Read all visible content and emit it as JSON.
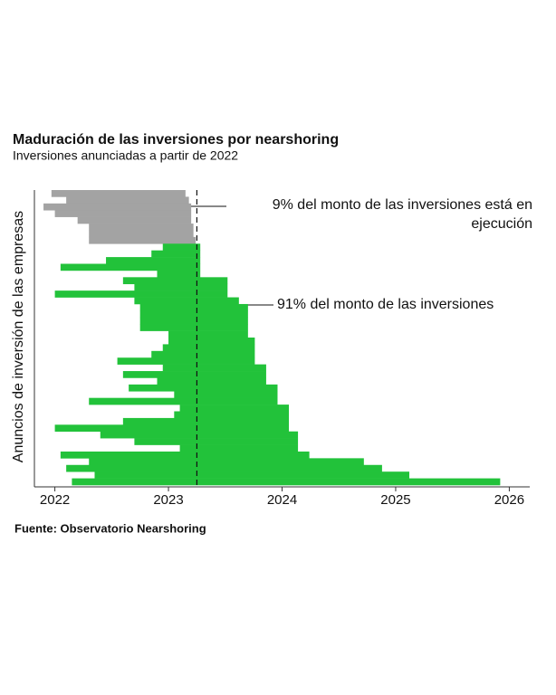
{
  "chart_data": {
    "type": "gantt",
    "title": "Maduración de las inversiones por nearshoring",
    "subtitle": "Inversiones anunciadas a partir de 2022",
    "y_label": "Anuncios de inversión de las empresas",
    "source": "Fuente: Observatorio Nearshoring",
    "annotations": [
      "9% del monto de las inversiones está en ejecución",
      "91% del monto de las inversiones"
    ],
    "xlim": [
      2021.82,
      2026.18
    ],
    "xticks": [
      2022,
      2023,
      2024,
      2025,
      2026
    ],
    "reference_line": 2023.25,
    "series": [
      {
        "color": "#a3a3a3",
        "start": [
          2021.97,
          2022.1,
          2021.9,
          2022.0,
          2022.2,
          2022.3,
          2022.3,
          2022.3
        ],
        "end": [
          2023.15,
          2023.18,
          2023.2,
          2023.2,
          2023.2,
          2023.22,
          2023.22,
          2023.24
        ]
      },
      {
        "color": "#22c23a",
        "start": [
          2022.95,
          2022.85,
          2022.45,
          2022.05,
          2022.9,
          2022.6,
          2022.7,
          2022.0,
          2022.7,
          2022.75,
          2022.75,
          2022.75,
          2022.75,
          2023.0,
          2023.0,
          2022.95,
          2022.85,
          2022.55,
          2022.95,
          2022.6,
          2022.9,
          2022.65,
          2023.05,
          2022.3,
          2023.1,
          2023.05,
          2022.6,
          2022.0,
          2022.4,
          2022.7,
          2023.1,
          2022.05,
          2022.3,
          2022.1,
          2022.35,
          2022.15
        ],
        "end": [
          2023.28,
          2023.28,
          2023.28,
          2023.28,
          2023.28,
          2023.52,
          2023.52,
          2023.52,
          2023.62,
          2023.7,
          2023.7,
          2023.7,
          2023.7,
          2023.7,
          2023.76,
          2023.76,
          2023.76,
          2023.76,
          2023.86,
          2023.86,
          2023.86,
          2023.96,
          2023.96,
          2023.96,
          2024.06,
          2024.06,
          2024.06,
          2024.06,
          2024.14,
          2024.14,
          2024.14,
          2024.24,
          2024.72,
          2024.88,
          2025.12,
          2025.92
        ]
      }
    ]
  }
}
